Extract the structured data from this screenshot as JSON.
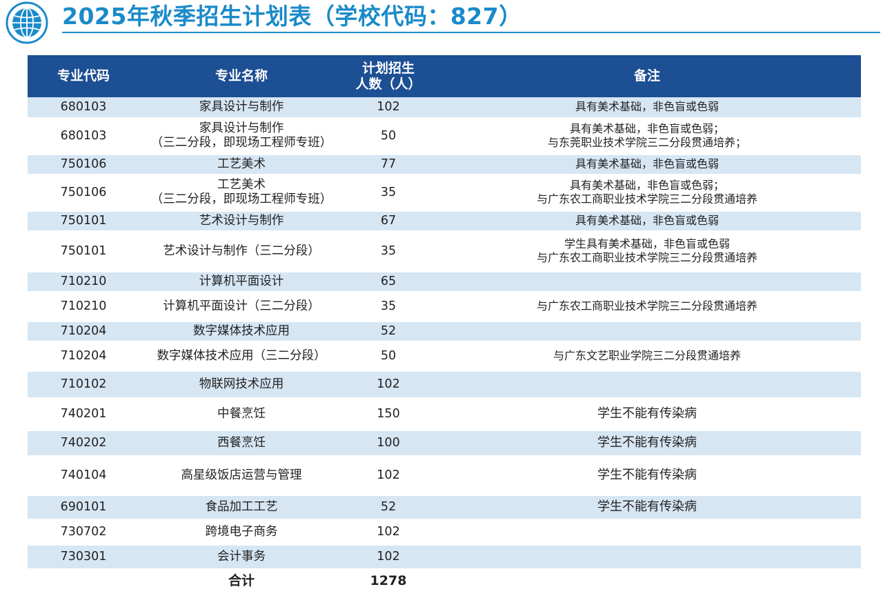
{
  "title": "2025年秋季招生计划表（学校代码：827）",
  "colors": {
    "accent": "#1a8ac9",
    "header_bg": "#1c4f93",
    "band": "#d6e6f3"
  },
  "logo_icon": "globe-logo-icon",
  "columns": {
    "code": "专业代码",
    "name": "专业名称",
    "plan_line1": "计划招生",
    "plan_line2": "人数（人）",
    "note": "备注"
  },
  "rows": [
    {
      "code": "680103",
      "name": [
        "家具设计与制作"
      ],
      "count": "102",
      "note": [
        "具有美术基础，非色盲或色弱"
      ]
    },
    {
      "code": "680103",
      "name": [
        "家具设计与制作",
        "（三二分段，即现场工程师专班）"
      ],
      "count": "50",
      "note": [
        "具有美术基础，非色盲或色弱；",
        "与东莞职业技术学院三二分段贯通培养；"
      ]
    },
    {
      "code": "750106",
      "name": [
        "工艺美术"
      ],
      "count": "77",
      "note": [
        "具有美术基础，非色盲或色弱"
      ]
    },
    {
      "code": "750106",
      "name": [
        "工艺美术",
        "（三二分段，即现场工程师专班）"
      ],
      "count": "35",
      "note": [
        "具有美术基础，非色盲或色弱；",
        "与广东农工商职业技术学院三二分段贯通培养"
      ]
    },
    {
      "code": "750101",
      "name": [
        "艺术设计与制作"
      ],
      "count": "67",
      "note": [
        "具有美术基础，非色盲或色弱"
      ]
    },
    {
      "code": "750101",
      "name": [
        "艺术设计与制作（三二分段）"
      ],
      "count": "35",
      "note": [
        "学生具有美术基础，非色盲或色弱",
        "与广东农工商职业技术学院三二分段贯通培养"
      ]
    },
    {
      "code": "710210",
      "name": [
        "计算机平面设计"
      ],
      "count": "65",
      "note": [
        ""
      ]
    },
    {
      "code": "710210",
      "name": [
        "计算机平面设计（三二分段）"
      ],
      "count": "35",
      "note": [
        "与广东农工商职业技术学院三二分段贯通培养"
      ]
    },
    {
      "code": "710204",
      "name": [
        "数字媒体技术应用"
      ],
      "count": "52",
      "note": [
        ""
      ]
    },
    {
      "code": "710204",
      "name": [
        "数字媒体技术应用（三二分段）"
      ],
      "count": "50",
      "note": [
        "与广东文艺职业学院三二分段贯通培养"
      ]
    },
    {
      "code": "710102",
      "name": [
        "物联网技术应用"
      ],
      "count": "102",
      "note": [
        ""
      ]
    },
    {
      "code": "740201",
      "name": [
        "中餐烹饪"
      ],
      "count": "150",
      "note": [
        "学生不能有传染病"
      ]
    },
    {
      "code": "740202",
      "name": [
        "西餐烹饪"
      ],
      "count": "100",
      "note": [
        "学生不能有传染病"
      ]
    },
    {
      "code": "740104",
      "name": [
        "高星级饭店运营与管理"
      ],
      "count": "102",
      "note": [
        "学生不能有传染病"
      ]
    },
    {
      "code": "690101",
      "name": [
        "食品加工工艺"
      ],
      "count": "52",
      "note": [
        "学生不能有传染病"
      ]
    },
    {
      "code": "730702",
      "name": [
        "跨境电子商务"
      ],
      "count": "102",
      "note": [
        ""
      ]
    },
    {
      "code": "730301",
      "name": [
        "会计事务"
      ],
      "count": "102",
      "note": [
        ""
      ]
    }
  ],
  "total": {
    "label": "合计",
    "value": "1278"
  }
}
